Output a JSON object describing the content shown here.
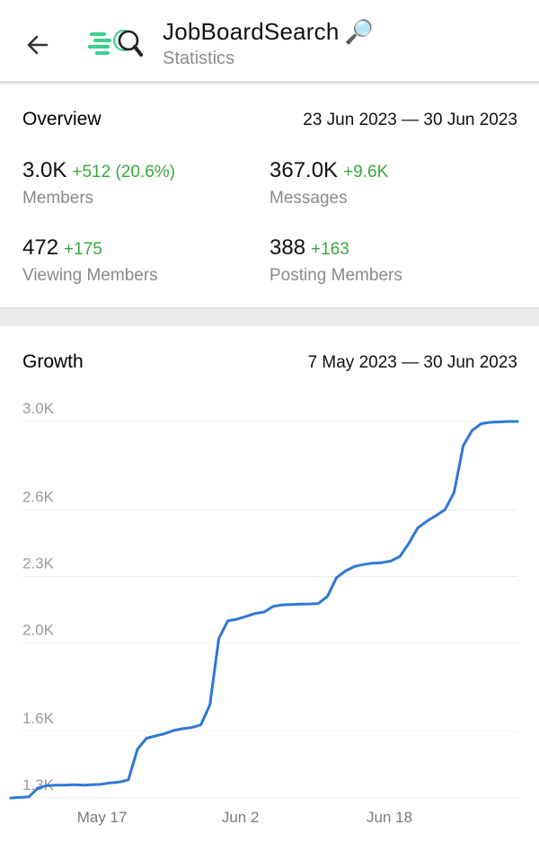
{
  "header": {
    "channel_name": "JobBoardSearch",
    "title_emoji": "🔎",
    "subtitle": "Statistics",
    "back_icon": "arrow-left-icon",
    "avatar_icon": "magnifier-speed-logo-icon"
  },
  "overview": {
    "title": "Overview",
    "range": "23 Jun 2023 — 30 Jun 2023",
    "stats": [
      {
        "value": "3.0K",
        "delta": "+512 (20.6%)",
        "label": "Members"
      },
      {
        "value": "367.0K",
        "delta": "+9.6K",
        "label": "Messages"
      },
      {
        "value": "472",
        "delta": "+175",
        "label": "Viewing Members"
      },
      {
        "value": "388",
        "delta": "+163",
        "label": "Posting Members"
      }
    ]
  },
  "growth": {
    "title": "Growth",
    "range": "7 May 2023 — 30 Jun 2023"
  },
  "colors": {
    "accent_line": "#2f78d3",
    "positive_delta": "#3aa83f",
    "logo_green": "#3ccf8e"
  },
  "chart_data": {
    "type": "line",
    "title": "Growth",
    "xlabel": "",
    "ylabel": "",
    "x_tick_labels": [
      "May 17",
      "Jun 2",
      "Jun 18"
    ],
    "y_tick_labels": [
      "1.3K",
      "1.6K",
      "2.0K",
      "2.3K",
      "2.6K",
      "3.0K"
    ],
    "y_tick_values": [
      1300,
      1600,
      2000,
      2300,
      2600,
      3000
    ],
    "x_tick_days": [
      10,
      26,
      42
    ],
    "ylim": [
      1300,
      3000
    ],
    "xlim": [
      0,
      56
    ],
    "grid": true,
    "series": [
      {
        "color": "#2f78d3",
        "x": [
          0,
          2,
          3,
          4,
          5,
          6,
          7,
          8,
          9,
          10,
          11,
          12,
          13,
          14,
          15,
          16,
          17,
          18,
          19,
          20,
          21,
          22,
          23,
          24,
          25,
          26,
          27,
          28,
          29,
          30,
          31,
          32,
          33,
          34,
          35,
          36,
          37,
          38,
          39,
          40,
          41,
          42,
          43,
          44,
          45,
          46,
          47,
          48,
          49,
          50,
          51,
          52,
          53,
          54,
          55,
          56
        ],
        "y": [
          1300,
          1305,
          1345,
          1356,
          1358,
          1358,
          1360,
          1358,
          1360,
          1362,
          1368,
          1372,
          1382,
          1520,
          1570,
          1580,
          1590,
          1605,
          1613,
          1618,
          1630,
          1720,
          2020,
          2100,
          2107,
          2120,
          2133,
          2140,
          2165,
          2172,
          2173,
          2175,
          2176,
          2178,
          2210,
          2295,
          2325,
          2345,
          2354,
          2360,
          2362,
          2370,
          2390,
          2450,
          2520,
          2550,
          2575,
          2602,
          2680,
          2890,
          2960,
          2990,
          2996,
          2998,
          3000,
          3000
        ]
      }
    ]
  }
}
